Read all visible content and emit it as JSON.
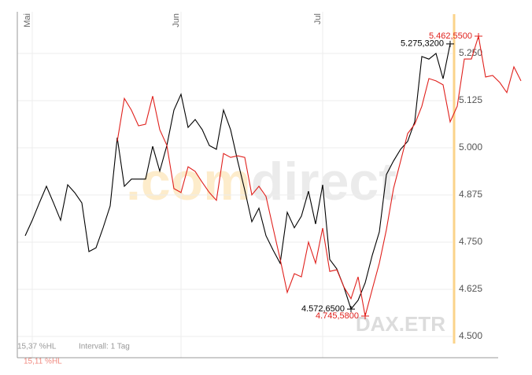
{
  "chart_data": {
    "type": "line",
    "categories": [
      null,
      "Mai",
      null,
      null,
      null,
      null,
      null,
      null,
      null,
      null,
      null,
      null,
      null,
      null,
      null,
      null,
      null,
      null,
      null,
      null,
      null,
      null,
      "Jun",
      null,
      null,
      null,
      null,
      null,
      null,
      null,
      null,
      null,
      null,
      null,
      null,
      null,
      null,
      null,
      null,
      null,
      null,
      null,
      "Jul",
      null,
      null,
      null,
      null,
      null,
      null,
      null,
      null,
      null,
      null,
      null,
      null,
      null,
      null,
      null,
      null,
      null,
      null,
      null,
      null,
      null,
      null,
      null,
      null,
      null,
      null,
      null,
      null
    ],
    "series": [
      {
        "color": "#000000",
        "values": [
          4767,
          4808,
          4854,
          4898,
          4854,
          4808,
          4902,
          4881,
          4854,
          4725,
          4735,
          4788,
          4846,
          5027,
          4898,
          4917,
          4917,
          4917,
          5004,
          4938,
          5006,
          5100,
          5142,
          5054,
          5075,
          5048,
          5006,
          4996,
          5100,
          5048,
          4965,
          4888,
          4804,
          4840,
          4767,
          4729,
          4694,
          4829,
          4788,
          4819,
          4885,
          4798,
          4902,
          4704,
          4679,
          4631,
          4572.65,
          4596,
          4642,
          4715,
          4777,
          4929,
          4965,
          4996,
          5017,
          5069,
          5242,
          5235,
          5250,
          5183,
          5275.32,
          null,
          null,
          null,
          null,
          null,
          null,
          null,
          null,
          null,
          null
        ],
        "value_labels": [
          null,
          null,
          null,
          null,
          null,
          null,
          null,
          null,
          null,
          null,
          null,
          null,
          null,
          null,
          null,
          null,
          null,
          null,
          null,
          null,
          null,
          null,
          null,
          null,
          null,
          null,
          null,
          null,
          null,
          null,
          null,
          null,
          null,
          null,
          null,
          null,
          null,
          null,
          null,
          null,
          null,
          null,
          null,
          null,
          null,
          null,
          "4.572,6500",
          null,
          null,
          null,
          null,
          null,
          null,
          null,
          null,
          null,
          null,
          null,
          null,
          null,
          "5.275,3200",
          null,
          null,
          null,
          null,
          null,
          null,
          null,
          null,
          null,
          null
        ]
      },
      {
        "color": "#e0201c",
        "axis": "y2",
        "values": [
          null,
          null,
          null,
          null,
          null,
          null,
          null,
          null,
          null,
          null,
          null,
          null,
          null,
          5193,
          5303,
          5273,
          5233,
          5237,
          5309,
          5223,
          5183,
          5072,
          5062,
          5128,
          5116,
          5088,
          5062,
          5042,
          5162,
          5152,
          5156,
          5152,
          5056,
          5078,
          5052,
          4971,
          4891,
          4806,
          4854,
          4846,
          4935,
          4881,
          4971,
          4860,
          4864,
          4820,
          4790,
          4846,
          4745.58,
          4814,
          4881,
          4967,
          5072,
          5142,
          5213,
          5237,
          5283,
          5354,
          5348,
          5338,
          5243,
          5283,
          5404,
          5404,
          5462.55,
          5358,
          5362,
          5344,
          5318,
          5384,
          5348
        ],
        "value_labels": [
          null,
          null,
          null,
          null,
          null,
          null,
          null,
          null,
          null,
          null,
          null,
          null,
          null,
          null,
          null,
          null,
          null,
          null,
          null,
          null,
          null,
          null,
          null,
          null,
          null,
          null,
          null,
          null,
          null,
          null,
          null,
          null,
          null,
          null,
          null,
          null,
          null,
          null,
          null,
          null,
          null,
          null,
          null,
          null,
          null,
          null,
          null,
          null,
          "4.745,5800",
          null,
          null,
          null,
          null,
          null,
          null,
          null,
          null,
          null,
          null,
          null,
          null,
          null,
          null,
          null,
          "5.462,5500",
          null,
          null,
          null,
          null,
          null,
          null
        ]
      }
    ],
    "ylim": [
      4443.75,
      5360.4
    ],
    "yticks": [
      {
        "value": 4500,
        "label": "4.500"
      },
      {
        "value": 4625,
        "label": "4.625"
      },
      {
        "value": 4750,
        "label": "4.750"
      },
      {
        "value": 4875,
        "label": "4.875"
      },
      {
        "value": 5000,
        "label": "5.000"
      },
      {
        "value": 5125,
        "label": "5.125"
      },
      {
        "value": 5250,
        "label": "5.250"
      }
    ],
    "y2lim": [
      4638.8,
      5525.0
    ],
    "grid": true,
    "watermark": {
      "logo_a": ".com",
      "logo_b": "direct",
      "symbol": "DAX.ETR"
    },
    "footer": {
      "series_0_range": "15,37 %HL",
      "interval": "Intervall: 1 Tag",
      "series_1_range": "15,11 %HL"
    }
  }
}
